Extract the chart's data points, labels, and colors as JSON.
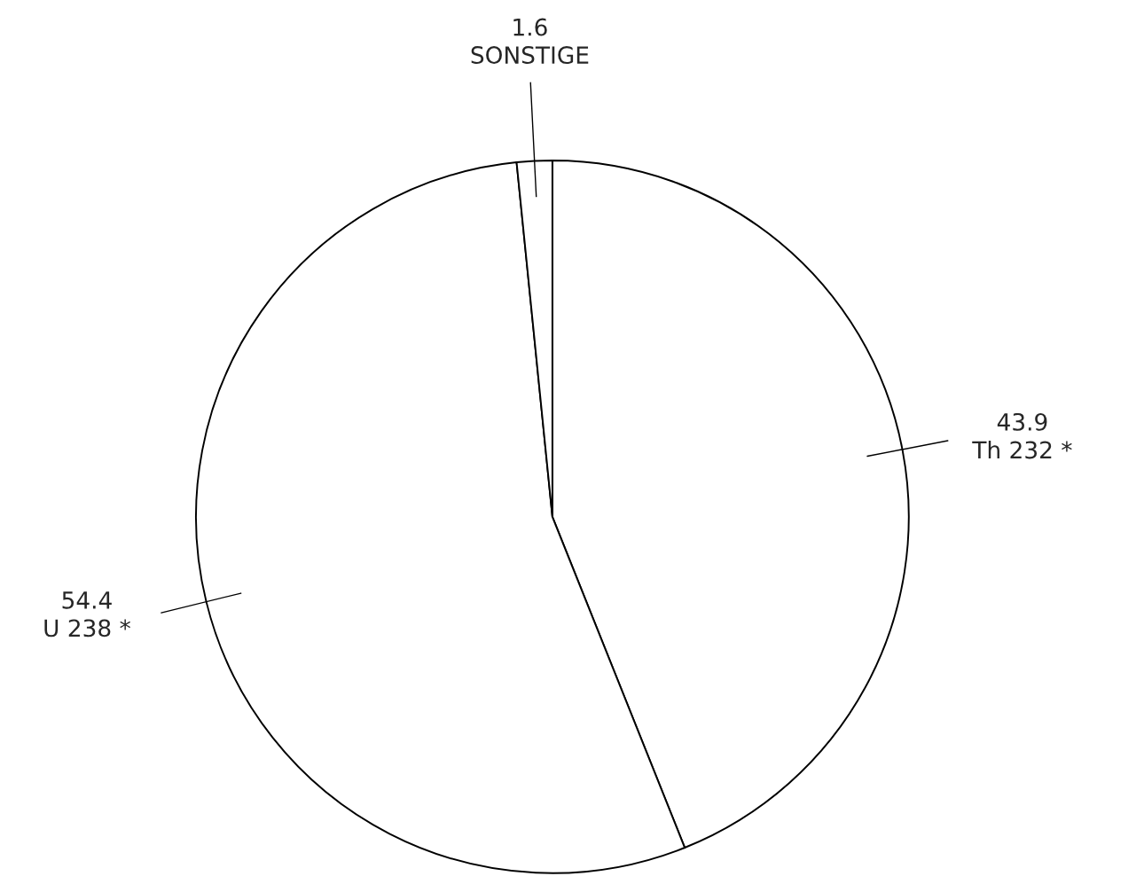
{
  "chart_data": {
    "type": "pie",
    "categories": [
      "Th 232 *",
      "U 238 *",
      "SONSTIGE"
    ],
    "values": [
      43.9,
      54.4,
      1.6
    ],
    "colors": [
      "#ffffff",
      "#ffffff",
      "#ffffff"
    ],
    "data_labels": true
  }
}
